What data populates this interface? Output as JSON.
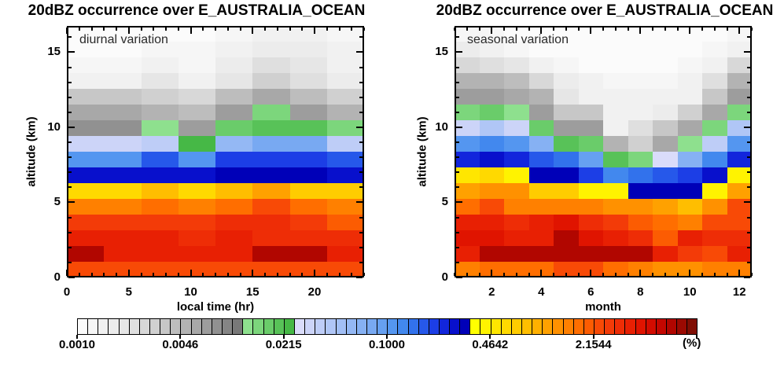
{
  "chart_data": {
    "type": "heatmap",
    "figure_note": "two-panel occurrence-frequency heatmaps sharing one discrete logarithmic colorbar",
    "scale": {
      "type": "log",
      "min_percent": 0.001,
      "max_percent": 10,
      "n_bins": 60,
      "bin_values_percent": [
        0.0011,
        0.0013,
        0.0015,
        0.0017,
        0.002,
        0.0023,
        0.0027,
        0.0032,
        0.0037,
        0.0043,
        0.005,
        0.0058,
        0.0068,
        0.0079,
        0.0092,
        0.0108,
        0.0126,
        0.0147,
        0.0171,
        0.02,
        0.0233,
        0.0272,
        0.0316,
        0.0368,
        0.043,
        0.05,
        0.0583,
        0.0681,
        0.0794,
        0.0924,
        0.108,
        0.126,
        0.147,
        0.171,
        0.2,
        0.233,
        0.272,
        0.316,
        0.368,
        0.43,
        0.5,
        0.583,
        0.681,
        0.794,
        0.924,
        1.08,
        1.26,
        1.47,
        1.71,
        2.0,
        2.33,
        2.72,
        3.16,
        3.68,
        4.3,
        5.0,
        5.83,
        6.81,
        7.94,
        9.24
      ],
      "note": "cell value in % = bin_values_percent[grid index]"
    },
    "palette": [
      "#fbfbfb",
      "#f6f6f6",
      "#f1f1f1",
      "#ececec",
      "#e6e6e6",
      "#dfdfdf",
      "#d8d8d8",
      "#d0d0d0",
      "#c7c7c7",
      "#bdbdbd",
      "#b3b3b3",
      "#a8a8a8",
      "#9d9d9d",
      "#919191",
      "#858585",
      "#787878",
      "#8ee08e",
      "#7cd67c",
      "#6acc6a",
      "#58c258",
      "#46b846",
      "#dadcfa",
      "#ccd4f8",
      "#becdf7",
      "#b0c6f6",
      "#a2bff5",
      "#94b8f4",
      "#86b1f3",
      "#78a9f2",
      "#66a0f1",
      "#5496f0",
      "#4288ee",
      "#3272ec",
      "#2658ea",
      "#1c3ee6",
      "#1226dc",
      "#0810cc",
      "#0000b8",
      "#ffff00",
      "#fff300",
      "#ffe600",
      "#ffd900",
      "#ffcc00",
      "#ffbe00",
      "#ffb000",
      "#ffa100",
      "#ff9100",
      "#ff8000",
      "#ff6e00",
      "#fc5c02",
      "#f84a06",
      "#f33b08",
      "#ee2d06",
      "#e82003",
      "#e01400",
      "#d30c00",
      "#c40700",
      "#b10600",
      "#9b0a02",
      "#800e04"
    ],
    "colorbar": {
      "tick_labels": [
        "0.0010",
        "0.0046",
        "0.0215",
        "0.1000",
        "0.4642",
        "2.1544"
      ],
      "unit_label": "(%)"
    },
    "panels": [
      {
        "title": "20dBZ occurrence over E_AUSTRALIA_OCEAN",
        "annotation": "diurnal variation",
        "xlabel": "local time (hr)",
        "ylabel": "altitude (km)",
        "x_range": [
          0,
          24
        ],
        "x_ticks": [
          0,
          5,
          10,
          15,
          20
        ],
        "x_minor_step": 1,
        "y_range": [
          0,
          16.75
        ],
        "y_ticks": [
          0,
          5,
          10,
          15
        ],
        "y_minor_step": 1,
        "n_cols": 8,
        "n_rows": 16,
        "x_bin_centers_hr": [
          1.5,
          4.5,
          7.5,
          10.5,
          13.5,
          16.5,
          19.5,
          22.5
        ],
        "row_order": "top_to_bottom (highest altitude first, ~1.05 km per row)",
        "grid": [
          [
            0,
            0,
            0,
            0,
            1,
            2,
            2,
            1
          ],
          [
            0,
            0,
            1,
            1,
            2,
            3,
            3,
            2
          ],
          [
            1,
            1,
            2,
            1,
            3,
            5,
            4,
            2
          ],
          [
            2,
            2,
            4,
            2,
            4,
            7,
            5,
            3
          ],
          [
            8,
            8,
            7,
            6,
            9,
            11,
            9,
            7
          ],
          [
            11,
            11,
            10,
            9,
            12,
            17,
            12,
            10
          ],
          [
            13,
            13,
            16,
            12,
            18,
            19,
            19,
            17
          ],
          [
            22,
            22,
            23,
            20,
            26,
            28,
            28,
            23
          ],
          [
            30,
            30,
            33,
            30,
            34,
            34,
            34,
            33
          ],
          [
            36,
            36,
            36,
            36,
            37,
            37,
            37,
            36
          ],
          [
            41,
            41,
            43,
            41,
            43,
            45,
            42,
            42
          ],
          [
            47,
            47,
            48,
            47,
            48,
            50,
            48,
            47
          ],
          [
            51,
            51,
            51,
            51,
            52,
            52,
            51,
            49
          ],
          [
            53,
            53,
            53,
            52,
            53,
            52,
            52,
            52
          ],
          [
            57,
            53,
            53,
            53,
            53,
            57,
            57,
            53
          ],
          [
            50,
            50,
            50,
            50,
            50,
            50,
            50,
            50
          ]
        ]
      },
      {
        "title": "20dBZ occurrence over E_AUSTRALIA_OCEAN",
        "annotation": "seasonal variation",
        "xlabel": "month",
        "ylabel": "altitude (km)",
        "x_range": [
          0.5,
          12.5
        ],
        "x_ticks": [
          2,
          4,
          6,
          8,
          10,
          12
        ],
        "x_minor_step": 0.5,
        "y_range": [
          0,
          16.75
        ],
        "y_ticks": [
          0,
          5,
          10,
          15
        ],
        "y_minor_step": 1,
        "n_cols": 12,
        "n_rows": 16,
        "x_bin_centers_month": [
          1,
          2,
          3,
          4,
          5,
          6,
          7,
          8,
          9,
          10,
          11,
          12
        ],
        "row_order": "top_to_bottom (highest altitude first, ~1.05 km per row)",
        "grid": [
          [
            1,
            1,
            0,
            0,
            0,
            0,
            0,
            0,
            0,
            0,
            0,
            1
          ],
          [
            3,
            2,
            1,
            0,
            0,
            0,
            0,
            0,
            0,
            0,
            1,
            2
          ],
          [
            6,
            5,
            4,
            2,
            1,
            0,
            0,
            0,
            0,
            1,
            2,
            6
          ],
          [
            10,
            10,
            9,
            6,
            3,
            2,
            1,
            1,
            1,
            2,
            5,
            10
          ],
          [
            12,
            12,
            11,
            10,
            4,
            2,
            2,
            2,
            2,
            2,
            8,
            12
          ],
          [
            17,
            18,
            16,
            12,
            8,
            8,
            2,
            2,
            3,
            7,
            11,
            17
          ],
          [
            22,
            24,
            22,
            18,
            12,
            12,
            2,
            5,
            8,
            11,
            17,
            24
          ],
          [
            30,
            31,
            30,
            27,
            19,
            18,
            10,
            7,
            11,
            16,
            23,
            30
          ],
          [
            35,
            36,
            35,
            33,
            32,
            29,
            19,
            17,
            21,
            27,
            31,
            35
          ],
          [
            40,
            41,
            39,
            37,
            37,
            34,
            31,
            32,
            33,
            34,
            36,
            39
          ],
          [
            45,
            46,
            46,
            42,
            42,
            39,
            39,
            37,
            37,
            37,
            39,
            45
          ],
          [
            48,
            50,
            47,
            47,
            47,
            47,
            46,
            46,
            45,
            43,
            46,
            50
          ],
          [
            53,
            53,
            52,
            53,
            54,
            52,
            51,
            49,
            48,
            47,
            50,
            50
          ],
          [
            54,
            54,
            53,
            53,
            57,
            54,
            53,
            52,
            49,
            53,
            52,
            52
          ],
          [
            53,
            57,
            57,
            57,
            57,
            57,
            57,
            57,
            53,
            51,
            50,
            53
          ],
          [
            47,
            48,
            48,
            48,
            50,
            50,
            48,
            47,
            46,
            46,
            47,
            47
          ]
        ]
      }
    ]
  }
}
